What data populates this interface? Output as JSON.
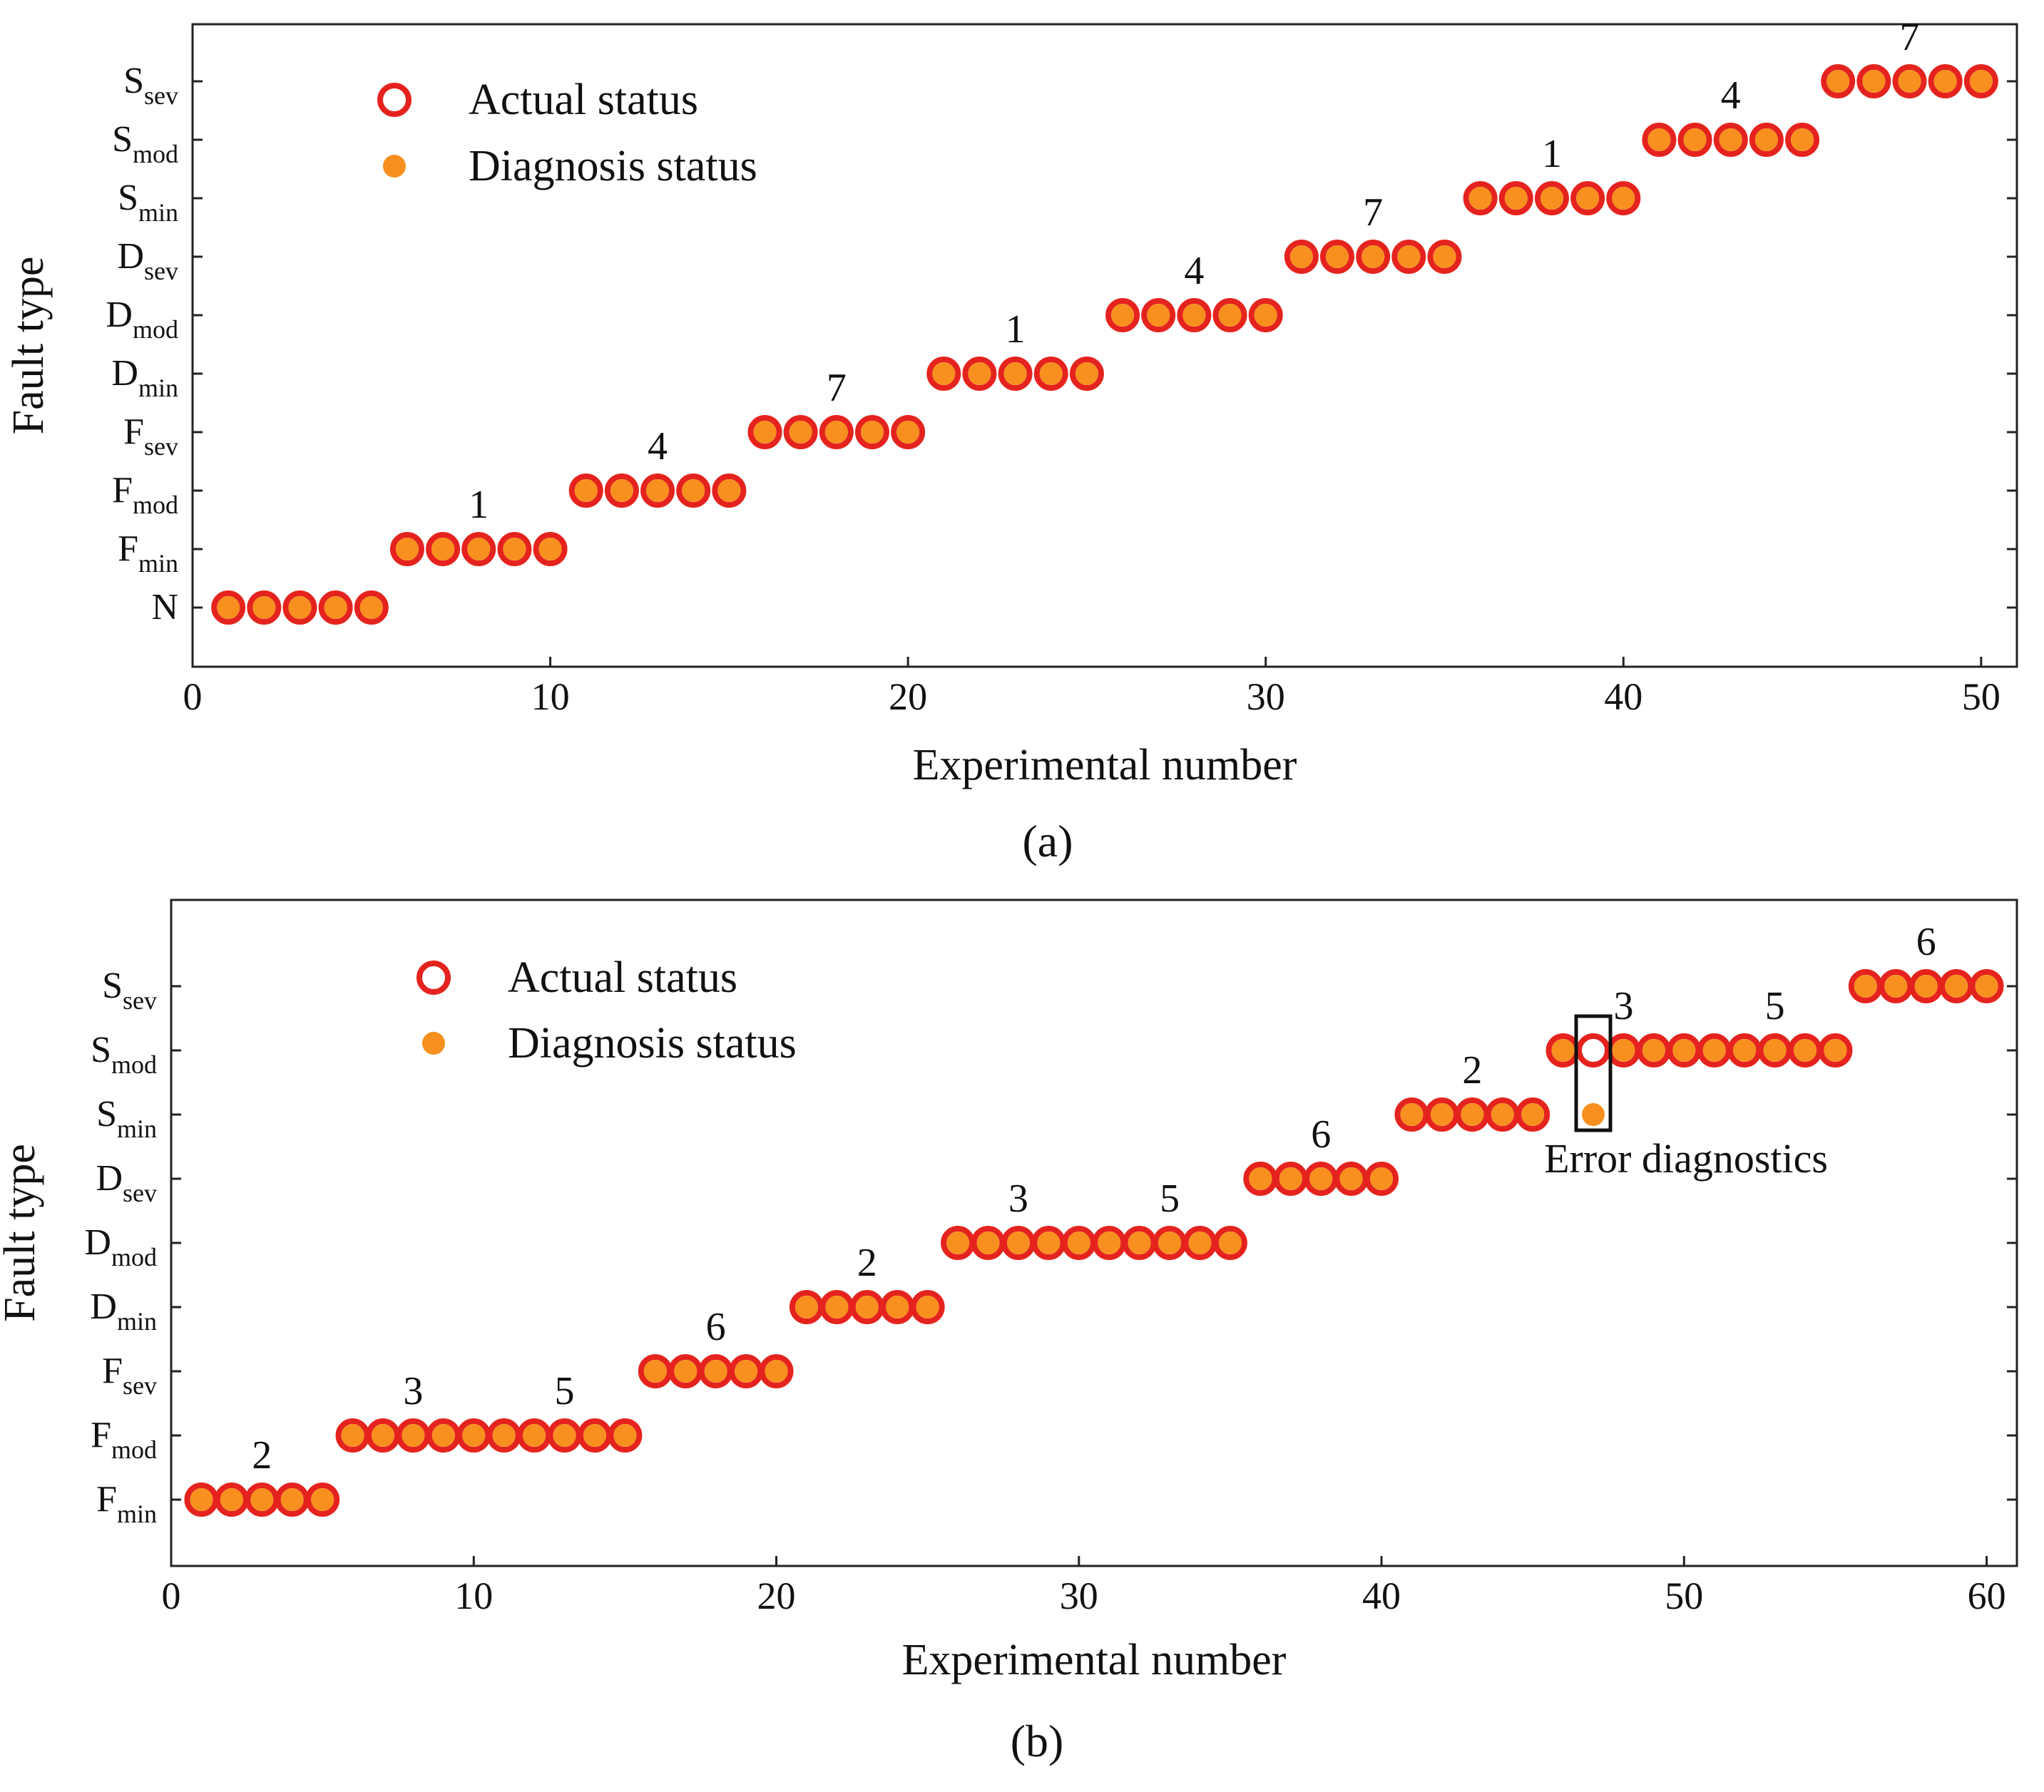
{
  "colors": {
    "actual_edge": "#e5231e",
    "diagnosis_fill": "#f7901e",
    "axis": "#222222"
  },
  "chart_data": [
    {
      "panel": "a",
      "type": "scatter",
      "caption": "(a)",
      "xlabel": "Experimental number",
      "ylabel": "Fault type",
      "xlim": [
        0,
        51
      ],
      "xticks": [
        0,
        10,
        20,
        30,
        40,
        50
      ],
      "categories": [
        {
          "main": "N",
          "sub": ""
        },
        {
          "main": "F",
          "sub": "min"
        },
        {
          "main": "F",
          "sub": "mod"
        },
        {
          "main": "F",
          "sub": "sev"
        },
        {
          "main": "D",
          "sub": "min"
        },
        {
          "main": "D",
          "sub": "mod"
        },
        {
          "main": "D",
          "sub": "sev"
        },
        {
          "main": "S",
          "sub": "min"
        },
        {
          "main": "S",
          "sub": "mod"
        },
        {
          "main": "S",
          "sub": "sev"
        }
      ],
      "legend": {
        "actual": "Actual status",
        "diagnosis": "Diagnosis status",
        "position": "top-left"
      },
      "series": [
        {
          "name": "Actual status",
          "x": [
            1,
            2,
            3,
            4,
            5,
            6,
            7,
            8,
            9,
            10,
            11,
            12,
            13,
            14,
            15,
            16,
            17,
            18,
            19,
            20,
            21,
            22,
            23,
            24,
            25,
            26,
            27,
            28,
            29,
            30,
            31,
            32,
            33,
            34,
            35,
            36,
            37,
            38,
            39,
            40,
            41,
            42,
            43,
            44,
            45,
            46,
            47,
            48,
            49,
            50
          ],
          "y": [
            0,
            0,
            0,
            0,
            0,
            1,
            1,
            1,
            1,
            1,
            2,
            2,
            2,
            2,
            2,
            3,
            3,
            3,
            3,
            3,
            4,
            4,
            4,
            4,
            4,
            5,
            5,
            5,
            5,
            5,
            6,
            6,
            6,
            6,
            6,
            7,
            7,
            7,
            7,
            7,
            8,
            8,
            8,
            8,
            8,
            9,
            9,
            9,
            9,
            9
          ]
        },
        {
          "name": "Diagnosis status",
          "x": [
            1,
            2,
            3,
            4,
            5,
            6,
            7,
            8,
            9,
            10,
            11,
            12,
            13,
            14,
            15,
            16,
            17,
            18,
            19,
            20,
            21,
            22,
            23,
            24,
            25,
            26,
            27,
            28,
            29,
            30,
            31,
            32,
            33,
            34,
            35,
            36,
            37,
            38,
            39,
            40,
            41,
            42,
            43,
            44,
            45,
            46,
            47,
            48,
            49,
            50
          ],
          "y": [
            0,
            0,
            0,
            0,
            0,
            1,
            1,
            1,
            1,
            1,
            2,
            2,
            2,
            2,
            2,
            3,
            3,
            3,
            3,
            3,
            4,
            4,
            4,
            4,
            4,
            5,
            5,
            5,
            5,
            5,
            6,
            6,
            6,
            6,
            6,
            7,
            7,
            7,
            7,
            7,
            8,
            8,
            8,
            8,
            8,
            9,
            9,
            9,
            9,
            9
          ]
        }
      ],
      "annotations": [
        {
          "text": "1",
          "x": 8,
          "y": 1
        },
        {
          "text": "4",
          "x": 13,
          "y": 2
        },
        {
          "text": "7",
          "x": 18,
          "y": 3
        },
        {
          "text": "1",
          "x": 23,
          "y": 4
        },
        {
          "text": "4",
          "x": 28,
          "y": 5
        },
        {
          "text": "7",
          "x": 33,
          "y": 6
        },
        {
          "text": "1",
          "x": 38,
          "y": 7
        },
        {
          "text": "4",
          "x": 43,
          "y": 8
        },
        {
          "text": "7",
          "x": 48,
          "y": 9
        }
      ]
    },
    {
      "panel": "b",
      "type": "scatter",
      "caption": "(b)",
      "xlabel": "Experimental number",
      "ylabel": "Fault type",
      "xlim": [
        0,
        61
      ],
      "xticks": [
        0,
        10,
        20,
        30,
        40,
        50,
        60
      ],
      "categories": [
        {
          "main": "F",
          "sub": "min"
        },
        {
          "main": "F",
          "sub": "mod"
        },
        {
          "main": "F",
          "sub": "sev"
        },
        {
          "main": "D",
          "sub": "min"
        },
        {
          "main": "D",
          "sub": "mod"
        },
        {
          "main": "D",
          "sub": "sev"
        },
        {
          "main": "S",
          "sub": "min"
        },
        {
          "main": "S",
          "sub": "mod"
        },
        {
          "main": "S",
          "sub": "sev"
        }
      ],
      "legend": {
        "actual": "Actual status",
        "diagnosis": "Diagnosis status",
        "position": "top-left"
      },
      "series": [
        {
          "name": "Actual status",
          "x": [
            1,
            2,
            3,
            4,
            5,
            6,
            7,
            8,
            9,
            10,
            11,
            12,
            13,
            14,
            15,
            16,
            17,
            18,
            19,
            20,
            21,
            22,
            23,
            24,
            25,
            26,
            27,
            28,
            29,
            30,
            31,
            32,
            33,
            34,
            35,
            36,
            37,
            38,
            39,
            40,
            41,
            42,
            43,
            44,
            45,
            46,
            47,
            48,
            49,
            50,
            51,
            52,
            53,
            54,
            55,
            56,
            57,
            58,
            59,
            60
          ],
          "y": [
            0,
            0,
            0,
            0,
            0,
            1,
            1,
            1,
            1,
            1,
            1,
            1,
            1,
            1,
            1,
            2,
            2,
            2,
            2,
            2,
            3,
            3,
            3,
            3,
            3,
            4,
            4,
            4,
            4,
            4,
            4,
            4,
            4,
            4,
            4,
            5,
            5,
            5,
            5,
            5,
            6,
            6,
            6,
            6,
            6,
            7,
            7,
            7,
            7,
            7,
            7,
            7,
            7,
            7,
            7,
            8,
            8,
            8,
            8,
            8
          ]
        },
        {
          "name": "Diagnosis status",
          "x": [
            1,
            2,
            3,
            4,
            5,
            6,
            7,
            8,
            9,
            10,
            11,
            12,
            13,
            14,
            15,
            16,
            17,
            18,
            19,
            20,
            21,
            22,
            23,
            24,
            25,
            26,
            27,
            28,
            29,
            30,
            31,
            32,
            33,
            34,
            35,
            36,
            37,
            38,
            39,
            40,
            41,
            42,
            43,
            44,
            45,
            46,
            47,
            48,
            49,
            50,
            51,
            52,
            53,
            54,
            55,
            56,
            57,
            58,
            59,
            60
          ],
          "y": [
            0,
            0,
            0,
            0,
            0,
            1,
            1,
            1,
            1,
            1,
            1,
            1,
            1,
            1,
            1,
            2,
            2,
            2,
            2,
            2,
            3,
            3,
            3,
            3,
            3,
            4,
            4,
            4,
            4,
            4,
            4,
            4,
            4,
            4,
            4,
            5,
            5,
            5,
            5,
            5,
            6,
            6,
            6,
            6,
            6,
            7,
            6,
            7,
            7,
            7,
            7,
            7,
            7,
            7,
            7,
            8,
            8,
            8,
            8,
            8
          ]
        }
      ],
      "annotations": [
        {
          "text": "2",
          "x": 3,
          "y": 0
        },
        {
          "text": "3",
          "x": 8,
          "y": 1
        },
        {
          "text": "5",
          "x": 13,
          "y": 1
        },
        {
          "text": "6",
          "x": 18,
          "y": 2
        },
        {
          "text": "2",
          "x": 23,
          "y": 3
        },
        {
          "text": "3",
          "x": 28,
          "y": 4
        },
        {
          "text": "5",
          "x": 33,
          "y": 4
        },
        {
          "text": "6",
          "x": 38,
          "y": 5
        },
        {
          "text": "2",
          "x": 43,
          "y": 6
        },
        {
          "text": "3",
          "x": 48,
          "y": 7
        },
        {
          "text": "5",
          "x": 53,
          "y": 7
        },
        {
          "text": "6",
          "x": 58,
          "y": 8
        }
      ],
      "error_box": {
        "text": "Error diagnostics",
        "x": 47
      }
    }
  ]
}
